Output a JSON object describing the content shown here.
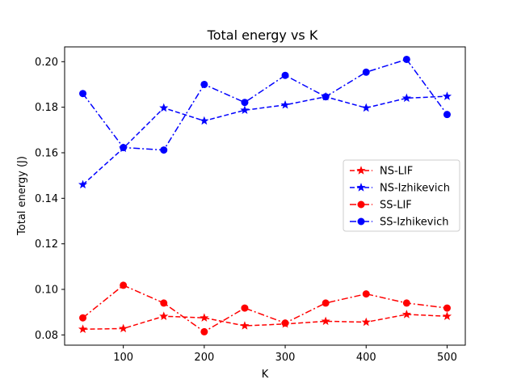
{
  "chart_data": {
    "type": "line",
    "title": "Total energy vs K",
    "xlabel": "K",
    "ylabel": "Total energy (J)",
    "x": [
      50,
      100,
      150,
      200,
      250,
      300,
      350,
      400,
      450,
      500
    ],
    "xlim": [
      27.5,
      522.5
    ],
    "ylim": [
      0.0755,
      0.2065
    ],
    "xticks": [
      "100",
      "200",
      "300",
      "400",
      "500"
    ],
    "yticks": [
      "0.08",
      "0.10",
      "0.12",
      "0.14",
      "0.16",
      "0.18",
      "0.20"
    ],
    "grid": false,
    "legend_position": "center-right",
    "series": [
      {
        "name": "NS-LIF",
        "values": [
          0.0825,
          0.0828,
          0.0882,
          0.0875,
          0.084,
          0.0848,
          0.086,
          0.0856,
          0.089,
          0.0882
        ],
        "color": "#ff0000",
        "linestyle": "dashed",
        "marker": "star"
      },
      {
        "name": "NS-Izhikevich",
        "values": [
          0.146,
          0.162,
          0.1797,
          0.174,
          0.1787,
          0.181,
          0.1846,
          0.1797,
          0.184,
          0.1848
        ],
        "color": "#0000ff",
        "linestyle": "dashed",
        "marker": "star"
      },
      {
        "name": "SS-LIF",
        "values": [
          0.0875,
          0.1018,
          0.094,
          0.0814,
          0.0918,
          0.0852,
          0.094,
          0.098,
          0.094,
          0.0918
        ],
        "color": "#ff0000",
        "linestyle": "dashdot",
        "marker": "circle"
      },
      {
        "name": "SS-Izhikevich",
        "values": [
          0.186,
          0.1623,
          0.1612,
          0.19,
          0.1821,
          0.194,
          0.1846,
          0.1954,
          0.201,
          0.1768
        ],
        "color": "#0000ff",
        "linestyle": "dashdot",
        "marker": "circle"
      }
    ]
  }
}
